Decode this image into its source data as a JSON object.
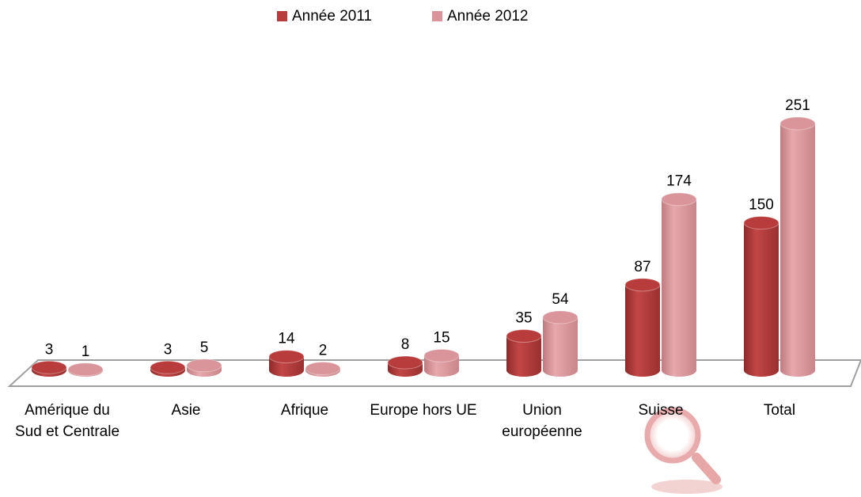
{
  "chart_data": {
    "type": "bar",
    "categories": [
      "Amérique du Sud et Centrale",
      "Asie",
      "Afrique",
      "Europe hors UE",
      "Union européenne",
      "Suisse",
      "Total"
    ],
    "series": [
      {
        "name": "Année 2011",
        "color": "#b83c3c",
        "values": [
          3,
          3,
          14,
          8,
          35,
          87,
          150
        ]
      },
      {
        "name": "Année 2012",
        "color": "#d9959a",
        "values": [
          1,
          5,
          2,
          15,
          54,
          174,
          251
        ]
      }
    ],
    "legend": "top"
  }
}
